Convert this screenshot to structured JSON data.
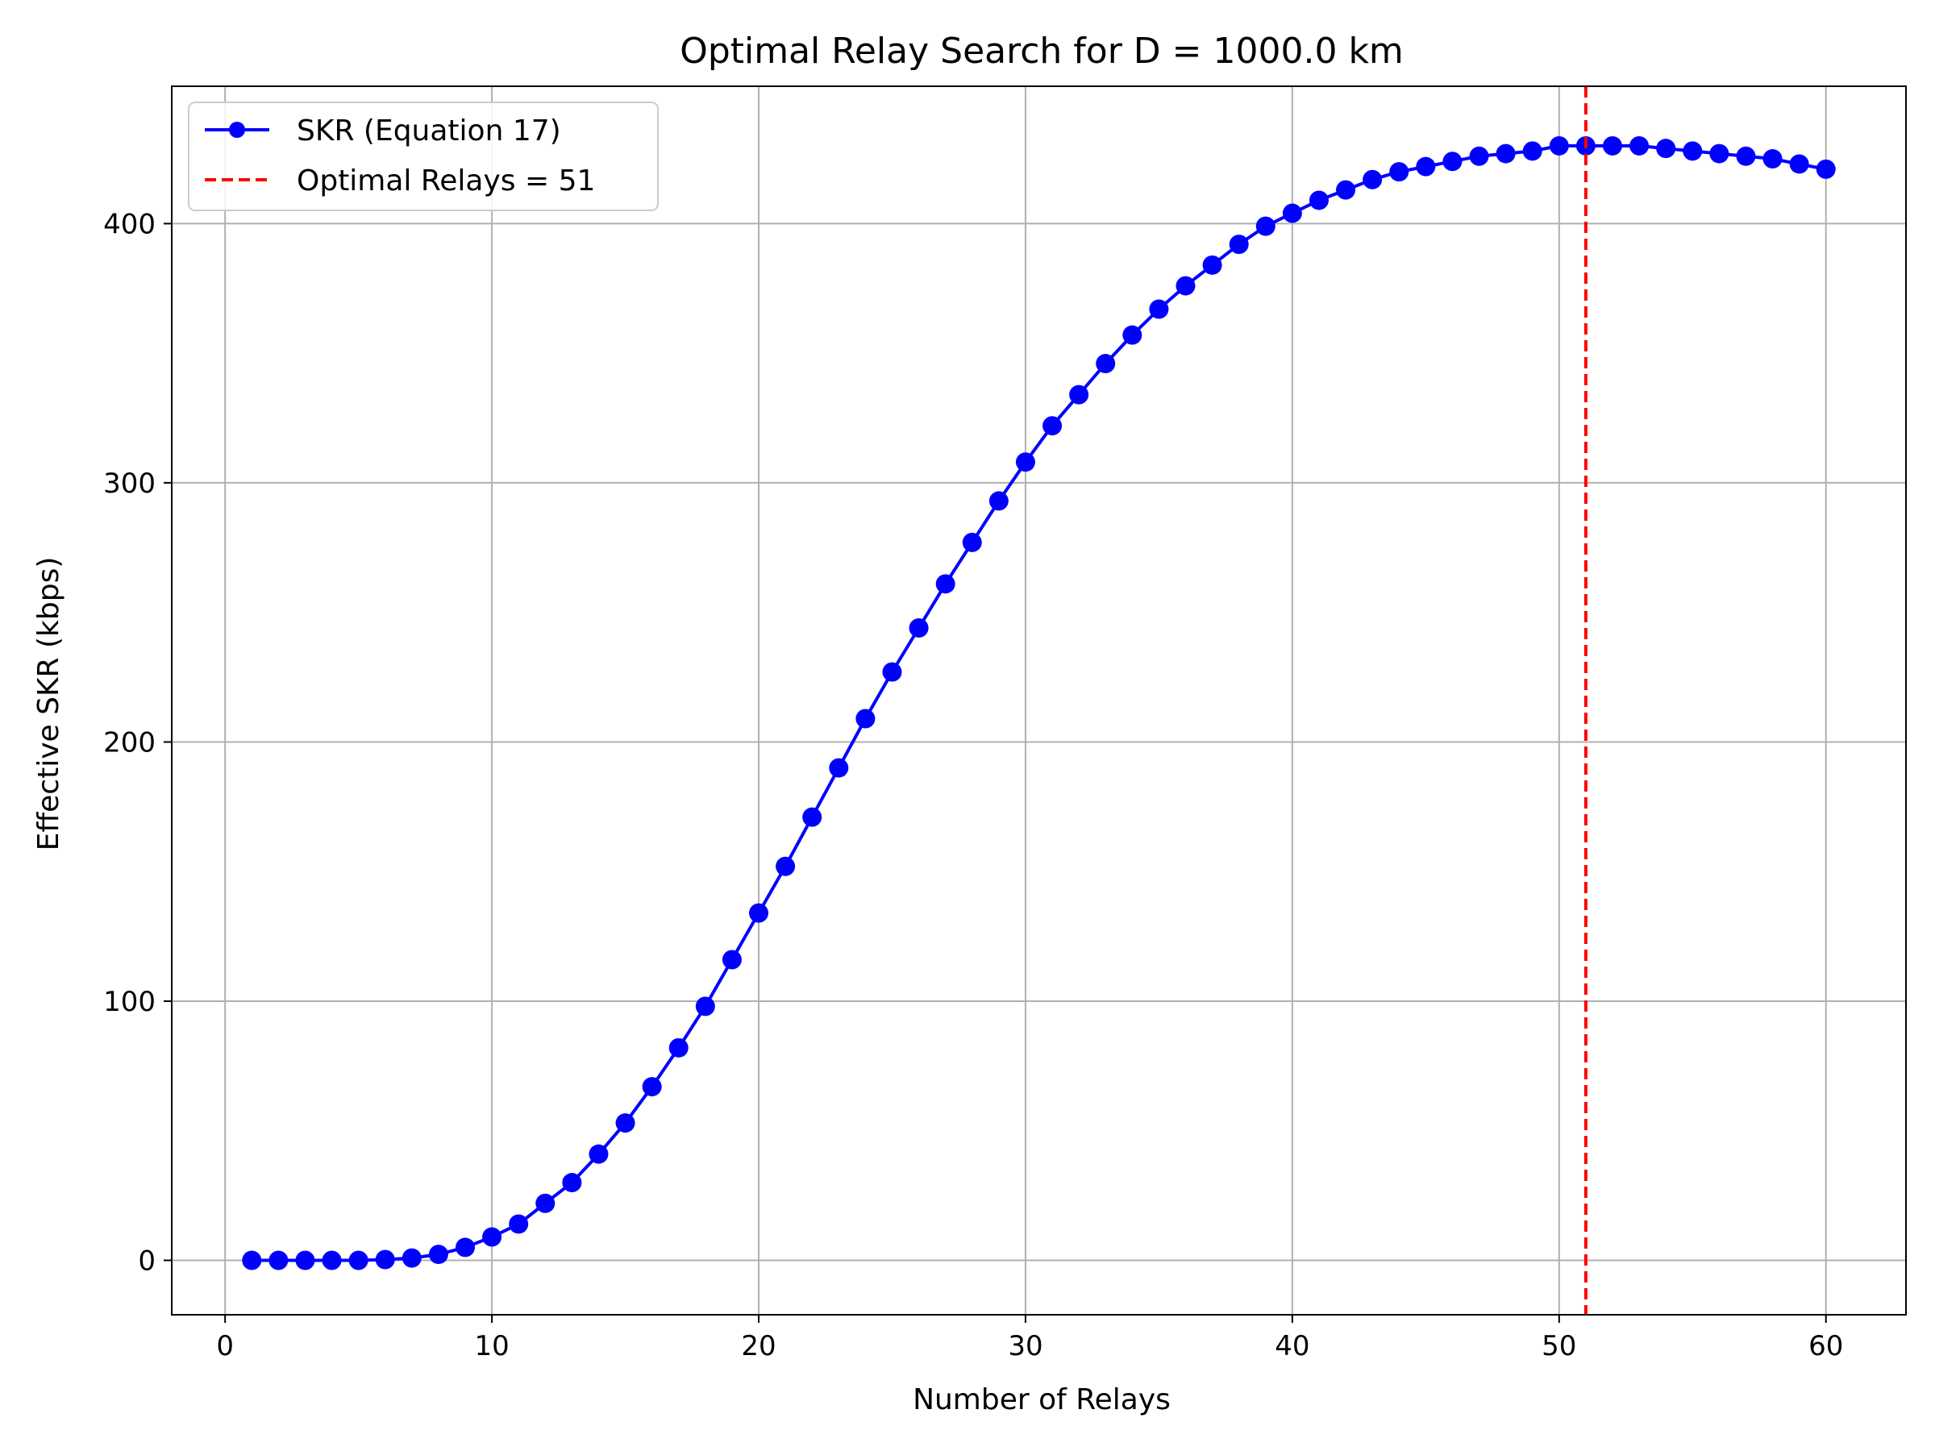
{
  "chart_data": {
    "type": "line",
    "title": "Optimal Relay Search for D = 1000.0 km",
    "xlabel": "Number of Relays",
    "ylabel": "Effective SKR (kbps)",
    "xlim": [
      -2,
      63
    ],
    "ylim": [
      -21,
      453
    ],
    "xticks": [
      0,
      10,
      20,
      30,
      40,
      50,
      60
    ],
    "yticks": [
      0,
      100,
      200,
      300,
      400
    ],
    "grid": true,
    "legend_position": "top-left",
    "series": [
      {
        "name": "SKR (Equation 17)",
        "color": "#0000ff",
        "marker": "circle",
        "x": [
          1,
          2,
          3,
          4,
          5,
          6,
          7,
          8,
          9,
          10,
          11,
          12,
          13,
          14,
          15,
          16,
          17,
          18,
          19,
          20,
          21,
          22,
          23,
          24,
          25,
          26,
          27,
          28,
          29,
          30,
          31,
          32,
          33,
          34,
          35,
          36,
          37,
          38,
          39,
          40,
          41,
          42,
          43,
          44,
          45,
          46,
          47,
          48,
          49,
          50,
          51,
          52,
          53,
          54,
          55,
          56,
          57,
          58,
          59,
          60
        ],
        "values": [
          0,
          0,
          0,
          0,
          0,
          0.3,
          0.9,
          2.3,
          5,
          9,
          14,
          22,
          30,
          41,
          53,
          67,
          82,
          98,
          116,
          134,
          152,
          171,
          190,
          209,
          227,
          244,
          261,
          277,
          293,
          308,
          322,
          334,
          346,
          357,
          367,
          376,
          384,
          392,
          399,
          404,
          409,
          413,
          417,
          420,
          422,
          424,
          426,
          427,
          428,
          430,
          430,
          430,
          430,
          429,
          428,
          427,
          426,
          425,
          423,
          421
        ]
      },
      {
        "name": "Optimal Relays = 51",
        "color": "#ff0000",
        "style": "dashed",
        "vline_x": 51
      }
    ]
  }
}
